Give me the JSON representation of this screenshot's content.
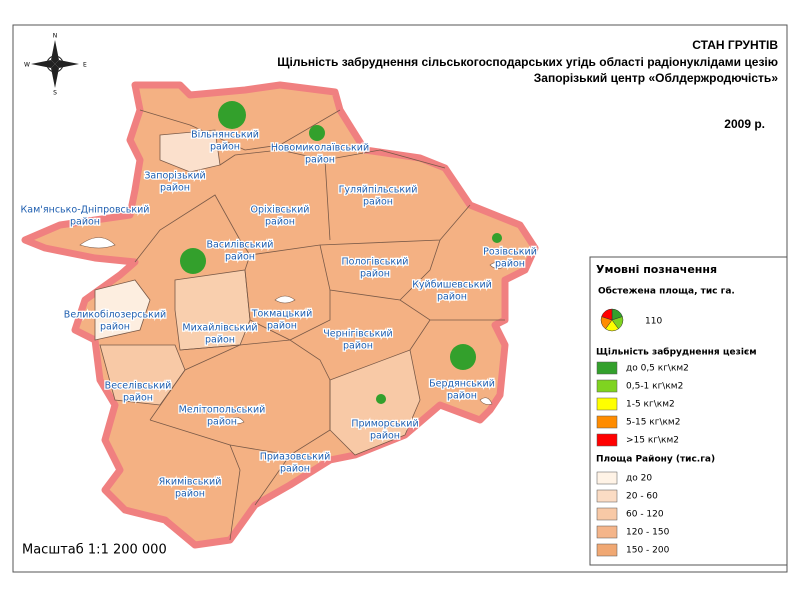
{
  "header": {
    "title": "СТАН ГРУНТІВ",
    "subtitle": "Щільність забруднення сільськогосподарських угідь області радіонуклідами цезію",
    "agency": "Запорізький центр «Облдержродючість»",
    "year": "2009 р."
  },
  "compass": {
    "n": "N",
    "e": "E",
    "s": "S",
    "w": "W"
  },
  "districts": [
    {
      "lines": [
        "Вільнянський",
        "район"
      ],
      "cesium_area": 178,
      "color": "#33a02c"
    },
    {
      "lines": [
        "Новомиколаївський",
        "район"
      ],
      "cesium_area": 58,
      "color": "#33a02c"
    },
    {
      "lines": [
        "Запорізький",
        "район"
      ]
    },
    {
      "lines": [
        "Кам'янсько-Дніпровський",
        "район"
      ]
    },
    {
      "lines": [
        "Оріхівський",
        "район"
      ]
    },
    {
      "lines": [
        "Гуляйпільський",
        "район"
      ]
    },
    {
      "lines": [
        "Василівський",
        "район"
      ],
      "cesium_area": 154,
      "color": "#33a02c"
    },
    {
      "lines": [
        "Розівський",
        "район"
      ],
      "cesium_area": 23,
      "color": "#33a02c"
    },
    {
      "lines": [
        "Пологівський",
        "район"
      ]
    },
    {
      "lines": [
        "Куйбишевський",
        "район"
      ]
    },
    {
      "lines": [
        "Великобілозерський",
        "район"
      ]
    },
    {
      "lines": [
        "Токмацький",
        "район"
      ]
    },
    {
      "lines": [
        "Михайлівський",
        "район"
      ]
    },
    {
      "lines": [
        "Чернігівський",
        "район"
      ]
    },
    {
      "lines": [
        "Бердянський",
        "район"
      ],
      "cesium_area": 154,
      "color": "#33a02c"
    },
    {
      "lines": [
        "Веселівський",
        "район"
      ]
    },
    {
      "lines": [
        "Мелітопольський",
        "район"
      ]
    },
    {
      "lines": [
        "Приморський",
        "район"
      ],
      "cesium_area": 23,
      "color": "#33a02c"
    },
    {
      "lines": [
        "Приазовський",
        "район"
      ]
    },
    {
      "lines": [
        "Якимівський",
        "район"
      ]
    }
  ],
  "legend": {
    "title": "Умовні позначення",
    "sample_title": "Обстежена площа, тис га.",
    "sample_value": 110,
    "density_title": "Щільність забруднення цезієм",
    "density_classes": [
      {
        "label": "до 0,5 кг\\км2",
        "color": "#33a02c"
      },
      {
        "label": "0,5-1 кг\\км2",
        "color": "#7fd320"
      },
      {
        "label": "1-5 кг\\км2",
        "color": "#ffff00"
      },
      {
        "label": "5-15 кг\\км2",
        "color": "#ff8c00"
      },
      {
        "label": ">15 кг\\км2",
        "color": "#ff0000"
      }
    ],
    "area_title": "Площа Району (тис.га)",
    "area_classes": [
      {
        "label": "до 20",
        "color": "#fff3e6"
      },
      {
        "label": "20 - 60",
        "color": "#fbdcc4"
      },
      {
        "label": "60 - 120",
        "color": "#f8c9a6"
      },
      {
        "label": "120 - 150",
        "color": "#f4b58a"
      },
      {
        "label": "150 - 200",
        "color": "#f0a873"
      }
    ]
  },
  "scale": "Масштаб 1:1 200 000"
}
